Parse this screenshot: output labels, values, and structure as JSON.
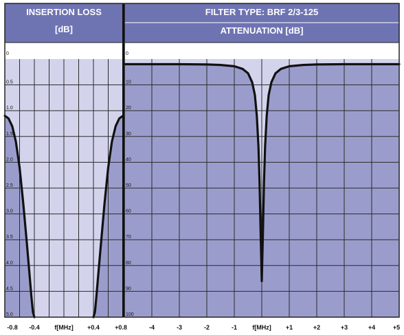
{
  "colors": {
    "header": "#6e73b2",
    "plot_band_light": "#d3d4ec",
    "plot_fill_dark": "#9a9dcc",
    "grid": "#2a2a2a",
    "curve": "#111111",
    "border": "#222222"
  },
  "left_header": {
    "line1": "INSERTION LOSS",
    "line2": "[dB]"
  },
  "right_header": {
    "line1": "FILTER TYPE: BRF 2/3-125",
    "line2": "ATTENUATION [dB]"
  },
  "chart_data": [
    {
      "type": "line",
      "title": "INSERTION LOSS [dB]",
      "xlabel": "f[MHz]",
      "x_tick_labels": [
        "-0.8",
        "-0.4",
        "f[MHz]",
        "+0.4",
        "+0.8"
      ],
      "x_ticks": [
        -0.8,
        -0.4,
        0,
        0.4,
        0.8
      ],
      "y_tick_labels": [
        "0",
        "0.5",
        "1.0",
        "1.5",
        "2.0",
        "2.5",
        "3.0",
        "3.5",
        "4.0",
        "4.5",
        "5.0"
      ],
      "xlim": [
        -0.8,
        0.8
      ],
      "ylim": [
        0,
        5.0
      ],
      "y_inverted": true,
      "grid": true,
      "series": [
        {
          "x": [
            -0.8,
            -0.75,
            -0.7,
            -0.65,
            -0.6,
            -0.55,
            -0.5,
            -0.47,
            -0.44,
            -0.42,
            -0.4
          ],
          "y": [
            1.1,
            1.15,
            1.3,
            1.6,
            2.1,
            2.8,
            3.6,
            4.1,
            4.6,
            4.9,
            5.0
          ]
        },
        {
          "x": [
            0.4,
            0.42,
            0.44,
            0.47,
            0.5,
            0.55,
            0.6,
            0.65,
            0.7,
            0.75,
            0.8
          ],
          "y": [
            5.0,
            4.9,
            4.6,
            4.1,
            3.6,
            2.8,
            2.1,
            1.6,
            1.3,
            1.15,
            1.1
          ]
        }
      ]
    },
    {
      "type": "line",
      "title": "ATTENUATION [dB]",
      "xlabel": "f[MHz]",
      "x_tick_labels": [
        "-4",
        "-3",
        "-2",
        "-1",
        "f[MHz]",
        "+1",
        "+2",
        "+3",
        "+4",
        "+5"
      ],
      "x_ticks": [
        -4,
        -3,
        -2,
        -1,
        0,
        1,
        2,
        3,
        4,
        5
      ],
      "y_tick_labels": [
        "0",
        "10",
        "20",
        "30",
        "40",
        "50",
        "60",
        "70",
        "80",
        "90",
        "100"
      ],
      "xlim": [
        -5,
        5
      ],
      "ylim": [
        0,
        100
      ],
      "y_inverted": true,
      "grid": true,
      "series": [
        {
          "x": [
            -5,
            -4,
            -3,
            -2,
            -1.5,
            -1,
            -0.7,
            -0.5,
            -0.35,
            -0.25,
            -0.18,
            -0.12,
            -0.08,
            -0.04,
            0,
            0.04,
            0.08,
            0.12,
            0.18,
            0.25,
            0.35,
            0.5,
            0.7,
            1,
            1.5,
            2,
            3,
            4,
            5
          ],
          "y": [
            2,
            2,
            2,
            2.1,
            2.3,
            2.8,
            3.8,
            5.5,
            9,
            14,
            22,
            34,
            48,
            68,
            86,
            68,
            48,
            34,
            22,
            14,
            9,
            5.5,
            3.8,
            2.8,
            2.3,
            2.1,
            2,
            2,
            2
          ]
        }
      ]
    }
  ]
}
